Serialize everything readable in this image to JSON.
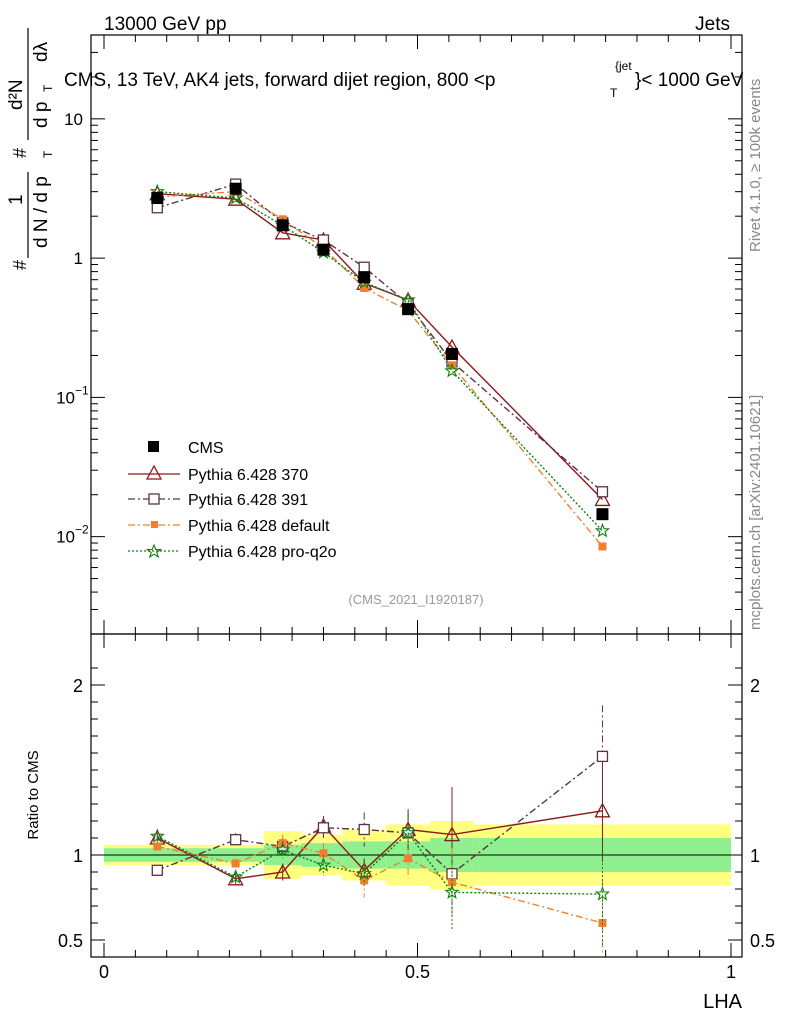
{
  "header": {
    "left": "13000 GeV pp",
    "right": "Jets",
    "title": "CMS, 13 TeV, AK4 jets, forward dijet region, 800 <p",
    "title_sup": "{jet",
    "title_sub": "T",
    "title_end": "}< 1000 GeV",
    "side_rivet": "Rivet 4.1.0, ≥ 100k events",
    "side_site": "mcplots.cern.ch [arXiv:2401.10621]",
    "analysis": "(CMS_2021_I1920187)"
  },
  "ylabel_main": {
    "hash1": "#",
    "frac_num": "1",
    "frac_den": "d N / d p",
    "frac_den_sub": "T",
    "hash2": "#",
    "num2": "d²N",
    "den2": "d p",
    "den2_sub": "T",
    "den2_end": "dλ"
  },
  "ylabel_ratio": "Ratio to CMS",
  "xlabel": "LHA",
  "legend": [
    {
      "label": "CMS"
    },
    {
      "label": "Pythia 6.428 370"
    },
    {
      "label": "Pythia 6.428 391"
    },
    {
      "label": "Pythia 6.428 default"
    },
    {
      "label": "Pythia 6.428 pro-q2o"
    }
  ],
  "chart_data": {
    "type": "line",
    "title": "CMS, 13 TeV, AK4 jets, forward dijet region, 800 <p_T^{jet}< 1000 GeV",
    "xlabel": "LHA",
    "ylabel": "1/(dN/dp_T) d²N/(dp_T dλ)",
    "xlim": [
      0,
      1
    ],
    "ylim": [
      0.002,
      40
    ],
    "yscale": "log",
    "ratio_ylim": [
      0.4,
      2.3
    ],
    "yticks": [
      {
        "value": 0.01,
        "label": "10",
        "exp": "−2"
      },
      {
        "value": 0.1,
        "label": "10",
        "exp": "−1"
      },
      {
        "value": 1,
        "label": "1",
        "exp": ""
      },
      {
        "value": 10,
        "label": "10",
        "exp": ""
      }
    ],
    "xticks": [
      {
        "value": 0,
        "label": "0"
      },
      {
        "value": 0.5,
        "label": "0.5"
      },
      {
        "value": 1,
        "label": "1"
      }
    ],
    "ratio_yticks": [
      {
        "value": 0.5,
        "label": "0.5"
      },
      {
        "value": 1,
        "label": "1"
      },
      {
        "value": 2,
        "label": "2"
      }
    ],
    "x": [
      0.085,
      0.21,
      0.285,
      0.35,
      0.415,
      0.485,
      0.555,
      0.795
    ],
    "bin_edges": [
      0,
      0.16,
      0.255,
      0.315,
      0.38,
      0.45,
      0.52,
      0.59,
      1.0
    ],
    "band_inner": [
      0.04,
      0.04,
      0.06,
      0.07,
      0.08,
      0.08,
      0.1,
      0.1
    ],
    "band_outer": [
      0.06,
      0.06,
      0.14,
      0.12,
      0.15,
      0.18,
      0.2,
      0.18
    ],
    "series": [
      {
        "name": "CMS",
        "color": "#000000",
        "marker": "square-filled",
        "dash": "none",
        "values": [
          2.7,
          3.15,
          1.72,
          1.15,
          0.73,
          0.43,
          0.205,
          0.0145
        ],
        "ratio": [
          1,
          1,
          1,
          1,
          1,
          1,
          1,
          1
        ]
      },
      {
        "name": "Pythia 6.428 370",
        "color": "#8b1a1a",
        "marker": "triangle-open",
        "dash": "solid",
        "values": [
          2.9,
          2.65,
          1.52,
          1.35,
          0.66,
          0.5,
          0.23,
          0.0185
        ],
        "ratio": [
          1.1,
          0.86,
          0.9,
          1.17,
          0.91,
          1.15,
          1.12,
          1.26
        ],
        "ratio_err": [
          0.04,
          0.03,
          0.05,
          0.06,
          0.07,
          0.12,
          0.28,
          0.3
        ]
      },
      {
        "name": "Pythia 6.428 391",
        "color": "#5c3344",
        "marker": "square-open",
        "dash": "dashdot",
        "values": [
          2.3,
          3.4,
          1.8,
          1.35,
          0.86,
          0.47,
          0.18,
          0.021
        ],
        "ratio": [
          0.91,
          1.09,
          1.05,
          1.16,
          1.15,
          1.13,
          0.89,
          1.58
        ],
        "ratio_err": [
          0.03,
          0.04,
          0.05,
          0.06,
          0.1,
          0.12,
          0.25,
          0.3
        ]
      },
      {
        "name": "Pythia 6.428 default",
        "color": "#f08030",
        "marker": "square-filled-small",
        "dash": "dashdot",
        "values": [
          2.75,
          3.0,
          1.9,
          1.18,
          0.61,
          0.42,
          0.17,
          0.0085
        ],
        "ratio": [
          1.05,
          0.95,
          1.07,
          1.01,
          0.85,
          0.98,
          0.84,
          0.6
        ],
        "ratio_err": [
          0.03,
          0.03,
          0.05,
          0.06,
          0.1,
          0.12,
          0.2,
          0.25
        ]
      },
      {
        "name": "Pythia 6.428 pro-q2o",
        "color": "#108010",
        "marker": "star",
        "dash": "dotted",
        "values": [
          3.0,
          2.7,
          1.72,
          1.1,
          0.67,
          0.5,
          0.155,
          0.011
        ],
        "ratio": [
          1.11,
          0.87,
          1.03,
          0.94,
          0.89,
          1.13,
          0.78,
          0.77
        ],
        "ratio_err": [
          0.03,
          0.03,
          0.05,
          0.06,
          0.08,
          0.12,
          0.22,
          0.3
        ]
      }
    ]
  }
}
